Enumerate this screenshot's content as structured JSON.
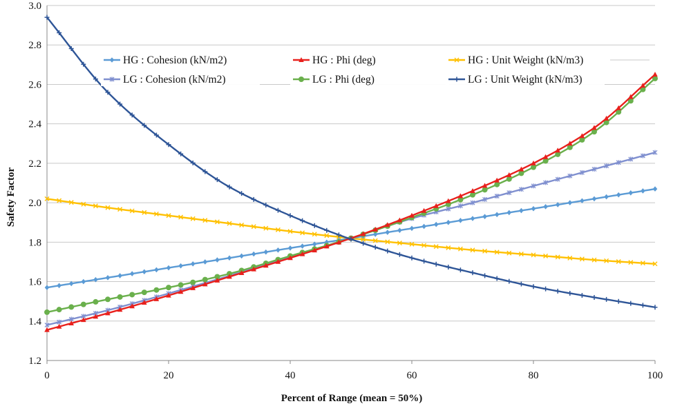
{
  "chart_data": {
    "type": "line",
    "title": "",
    "xlabel": "Percent of Range (mean = 50%)",
    "ylabel": "Safety Factor",
    "xlim": [
      0,
      100
    ],
    "ylim": [
      1.2,
      3.0
    ],
    "x_ticks": [
      "0",
      "20",
      "40",
      "60",
      "80",
      "100"
    ],
    "y_ticks": [
      "1.2",
      "1.4",
      "1.6",
      "1.8",
      "2.0",
      "2.2",
      "2.4",
      "2.6",
      "2.8",
      "3.0"
    ],
    "grid": "horizontal",
    "legend_position": "top",
    "x": [
      0,
      10,
      20,
      30,
      40,
      50,
      60,
      70,
      80,
      90,
      100
    ],
    "series": [
      {
        "name": "HG : Cohesion (kN/m2)",
        "color": "#5b9bd5",
        "marker": "diamond",
        "values": [
          1.57,
          1.62,
          1.67,
          1.72,
          1.77,
          1.82,
          1.87,
          1.92,
          1.97,
          2.02,
          2.07
        ]
      },
      {
        "name": "HG : Phi (deg)",
        "color": "#e8201c",
        "marker": "triangle",
        "values": [
          1.355,
          1.44,
          1.53,
          1.625,
          1.72,
          1.82,
          1.935,
          2.06,
          2.2,
          2.38,
          2.65
        ]
      },
      {
        "name": "HG : Unit Weight (kN/m3)",
        "color": "#ffc000",
        "marker": "x",
        "values": [
          2.02,
          1.975,
          1.935,
          1.895,
          1.855,
          1.82,
          1.79,
          1.76,
          1.735,
          1.71,
          1.69
        ]
      },
      {
        "name": "LG : Cohesion (kN/m2)",
        "color": "#7f8fcf",
        "marker": "asterisk",
        "values": [
          1.38,
          1.455,
          1.54,
          1.63,
          1.725,
          1.82,
          1.92,
          2.0,
          2.085,
          2.17,
          2.255
        ]
      },
      {
        "name": "LG : Phi (deg)",
        "color": "#6ab04c",
        "marker": "circle",
        "values": [
          1.445,
          1.51,
          1.57,
          1.64,
          1.73,
          1.82,
          1.925,
          2.04,
          2.18,
          2.36,
          2.63
        ]
      },
      {
        "name": "LG : Unit Weight (kN/m3)",
        "color": "#2e5597",
        "marker": "plus",
        "values": [
          2.94,
          2.56,
          2.295,
          2.08,
          1.935,
          1.815,
          1.72,
          1.645,
          1.575,
          1.52,
          1.47
        ]
      }
    ]
  }
}
